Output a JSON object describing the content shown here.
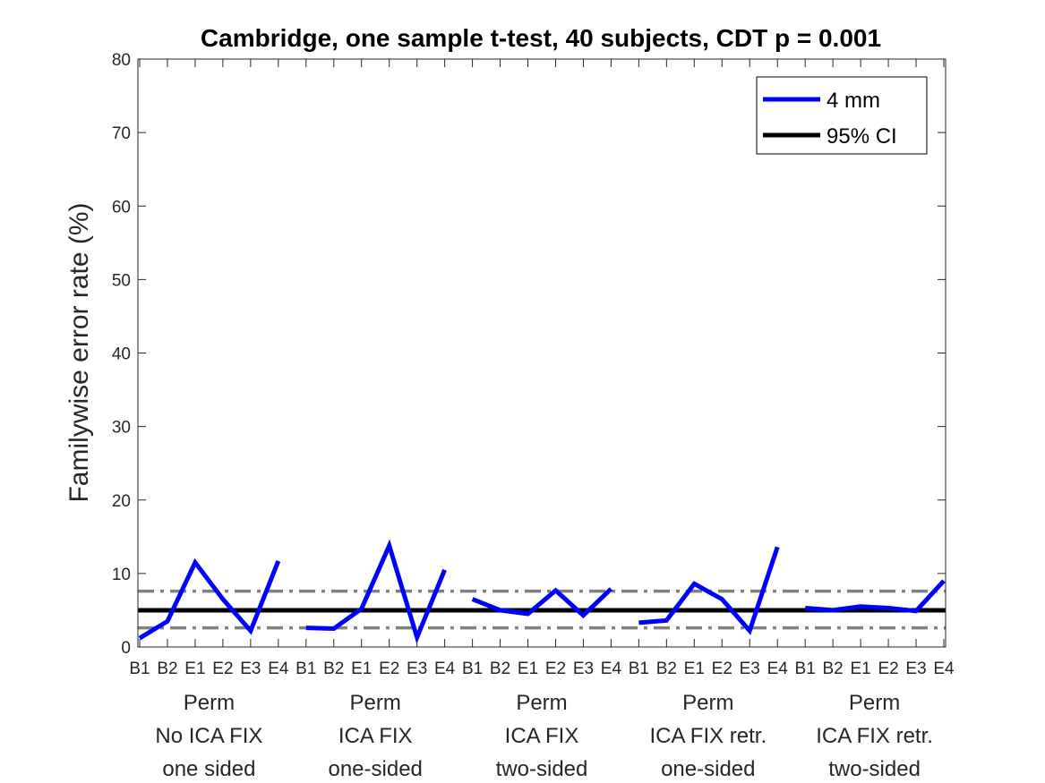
{
  "chart_data": {
    "type": "line",
    "title": "Cambridge, one sample t-test, 40 subjects, CDT p = 0.001",
    "xlabel": "",
    "ylabel": "Familywise error rate (%)",
    "ylim": [
      0,
      80
    ],
    "yticks": [
      0,
      10,
      20,
      30,
      40,
      50,
      60,
      70,
      80
    ],
    "grid": false,
    "legend_position": "top-right",
    "categories": [
      "B1",
      "B2",
      "E1",
      "E2",
      "E3",
      "E4",
      "B1",
      "B2",
      "E1",
      "E2",
      "E3",
      "E4",
      "B1",
      "B2",
      "E1",
      "E2",
      "E3",
      "E4",
      "B1",
      "B2",
      "E1",
      "E2",
      "E3",
      "E4",
      "B1",
      "B2",
      "E1",
      "E2",
      "E3",
      "E4"
    ],
    "groups": [
      {
        "lines": [
          "Perm",
          "No ICA FIX",
          "one sided"
        ]
      },
      {
        "lines": [
          "Perm",
          "ICA FIX",
          "one-sided"
        ]
      },
      {
        "lines": [
          "Perm",
          "ICA FIX",
          "two-sided"
        ]
      },
      {
        "lines": [
          "Perm",
          "ICA FIX retr.",
          "one-sided"
        ]
      },
      {
        "lines": [
          "Perm",
          "ICA FIX retr.",
          "two-sided"
        ]
      }
    ],
    "series": [
      {
        "name": "4 mm",
        "color": "#0000ff",
        "segments": [
          [
            1.2,
            3.5,
            11.5,
            6.5,
            2.2,
            11.7
          ],
          [
            2.6,
            2.5,
            5.2,
            13.8,
            1.3,
            10.5
          ],
          [
            6.5,
            5.0,
            4.5,
            7.7,
            4.3,
            7.9
          ],
          [
            3.3,
            3.6,
            8.6,
            6.5,
            2.2,
            13.6
          ],
          [
            5.3,
            5.0,
            5.5,
            5.3,
            4.9,
            9.0
          ]
        ]
      }
    ],
    "reference_lines": [
      {
        "name": "95% CI",
        "value": 5.0,
        "color": "#000000",
        "style": "solid"
      },
      {
        "value": 7.6,
        "color": "#808080",
        "style": "dash-dot"
      },
      {
        "value": 2.6,
        "color": "#808080",
        "style": "dash-dot"
      }
    ],
    "legend": [
      {
        "label": "4 mm",
        "color": "#0000ff"
      },
      {
        "label": "95% CI",
        "color": "#000000"
      }
    ]
  }
}
